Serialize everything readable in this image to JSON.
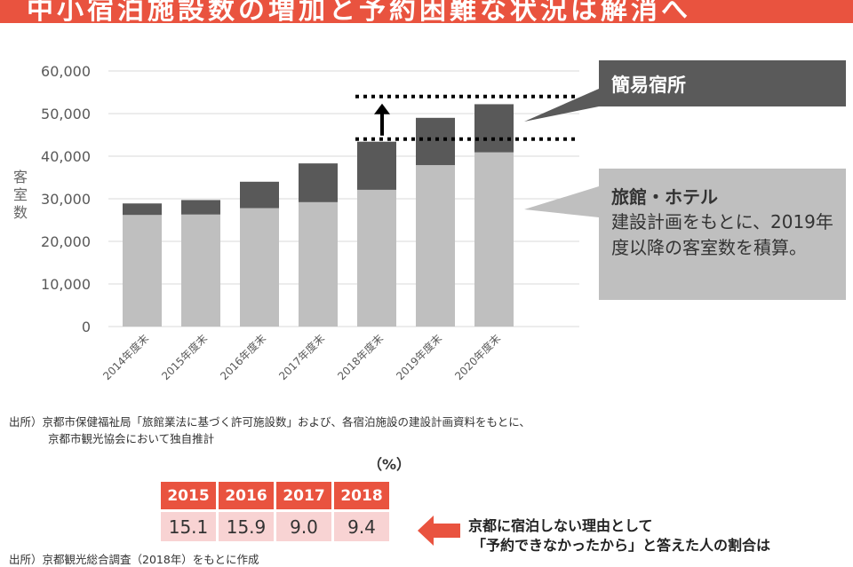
{
  "banner": {
    "title": "中小宿泊施設数の増加と予約困難な状況は解消へ"
  },
  "chart_data": {
    "type": "bar",
    "stacked": true,
    "categories": [
      "2014年度末",
      "2015年度末",
      "2016年度末",
      "2017年度末",
      "2018年度末",
      "2019年度末",
      "2020年度末"
    ],
    "series": [
      {
        "name": "旅館・ホテル",
        "color": "#bfbfbf",
        "values": [
          26200,
          26300,
          27800,
          29200,
          32100,
          37900,
          40900
        ]
      },
      {
        "name": "簡易宿所",
        "color": "#595959",
        "values": [
          2700,
          3400,
          6200,
          9100,
          11300,
          11100,
          11300
        ]
      }
    ],
    "ylim": [
      0,
      60000
    ],
    "yticks": [
      "0",
      "10,000",
      "20,000",
      "30,000",
      "40,000",
      "50,000",
      "60,000"
    ],
    "ylabel": "客室数",
    "grid": true,
    "annotations": {
      "dotted_lines": [
        44000,
        54000
      ],
      "arrow": "up"
    }
  },
  "callouts": {
    "kani": "簡易宿所",
    "ryokan_title": "旅館・ホテル",
    "ryokan_body": "建設計画をもとに、2019年度以降の客室数を積算。"
  },
  "source": {
    "line1": "出所）京都市保健福祉局「旅館業法に基づく許可施設数」および、各宿泊施設の建設計画資料をもとに、",
    "line2": "京都市観光協会において独自推計"
  },
  "table": {
    "unit": "（%）",
    "headers": [
      "2015",
      "2016",
      "2017",
      "2018"
    ],
    "values": [
      "15.1",
      "15.9",
      "9.0",
      "9.4"
    ]
  },
  "note": {
    "line1": "京都に宿泊しない理由として",
    "line2": "「予約できなかったから」と答えた人の割合は"
  },
  "footer_source": "出所）京都観光総合調査（2018年）をもとに作成",
  "colors": {
    "accent": "#e9533f",
    "pink": "#f8d3d3",
    "dark": "#595959",
    "light": "#bfbfbf"
  }
}
